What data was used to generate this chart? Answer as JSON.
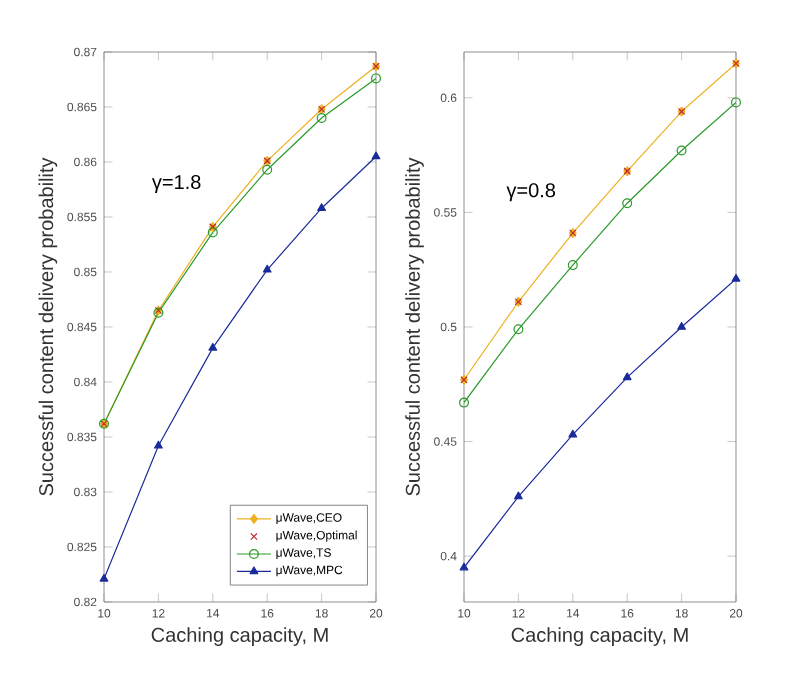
{
  "chart_data": [
    {
      "type": "line",
      "xlabel": "Caching capacity, M",
      "ylabel": "Successful content delivery probability",
      "annotations": [
        "γ=1.8"
      ],
      "x": [
        10,
        12,
        14,
        16,
        18,
        20
      ],
      "xlim": [
        10,
        20
      ],
      "ylim": [
        0.82,
        0.87
      ],
      "xticks": [
        10,
        12,
        14,
        16,
        18,
        20
      ],
      "yticks": [
        0.82,
        0.825,
        0.83,
        0.835,
        0.84,
        0.845,
        0.85,
        0.855,
        0.86,
        0.865,
        0.87
      ],
      "legend": "bottom right",
      "series": [
        {
          "name": "μWave,CEO",
          "color": "#edb120",
          "marker": "diamond",
          "values": [
            0.8362,
            0.8465,
            0.8541,
            0.8601,
            0.8648,
            0.8687
          ]
        },
        {
          "name": "μWave,Optimal",
          "type": "scatter",
          "color": "#c0282d",
          "marker": "cross",
          "values": [
            0.8362,
            0.8465,
            0.8541,
            0.8601,
            0.8648,
            0.8687
          ]
        },
        {
          "name": "μWave,TS",
          "color": "#2a9a2a",
          "marker": "circle",
          "values": [
            0.8362,
            0.8463,
            0.8536,
            0.8593,
            0.864,
            0.8676
          ]
        },
        {
          "name": "μWave,MPC",
          "color": "#1a2b9a",
          "marker": "triangle",
          "values": [
            0.8221,
            0.8342,
            0.8431,
            0.8502,
            0.8558,
            0.8605
          ]
        }
      ]
    },
    {
      "type": "line",
      "xlabel": "Caching capacity, M",
      "ylabel": "Successful content delivery probability",
      "annotations": [
        "γ=0.8"
      ],
      "x": [
        10,
        12,
        14,
        16,
        18,
        20
      ],
      "xlim": [
        10,
        20
      ],
      "ylim": [
        0.38,
        0.62
      ],
      "xticks": [
        10,
        12,
        14,
        16,
        18,
        20
      ],
      "yticks": [
        0.4,
        0.45,
        0.5,
        0.55,
        0.6
      ],
      "series": [
        {
          "color": "#edb120",
          "marker": "diamond",
          "values": [
            0.477,
            0.511,
            0.541,
            0.568,
            0.594,
            0.615
          ]
        },
        {
          "type": "scatter",
          "color": "#c0282d",
          "marker": "cross",
          "values": [
            0.477,
            0.511,
            0.541,
            0.568,
            0.594,
            0.615
          ]
        },
        {
          "color": "#2a9a2a",
          "marker": "circle",
          "values": [
            0.467,
            0.499,
            0.527,
            0.554,
            0.577,
            0.598
          ]
        },
        {
          "color": "#1a2b9a",
          "marker": "triangle",
          "values": [
            0.395,
            0.426,
            0.453,
            0.478,
            0.5,
            0.521
          ]
        }
      ]
    }
  ]
}
